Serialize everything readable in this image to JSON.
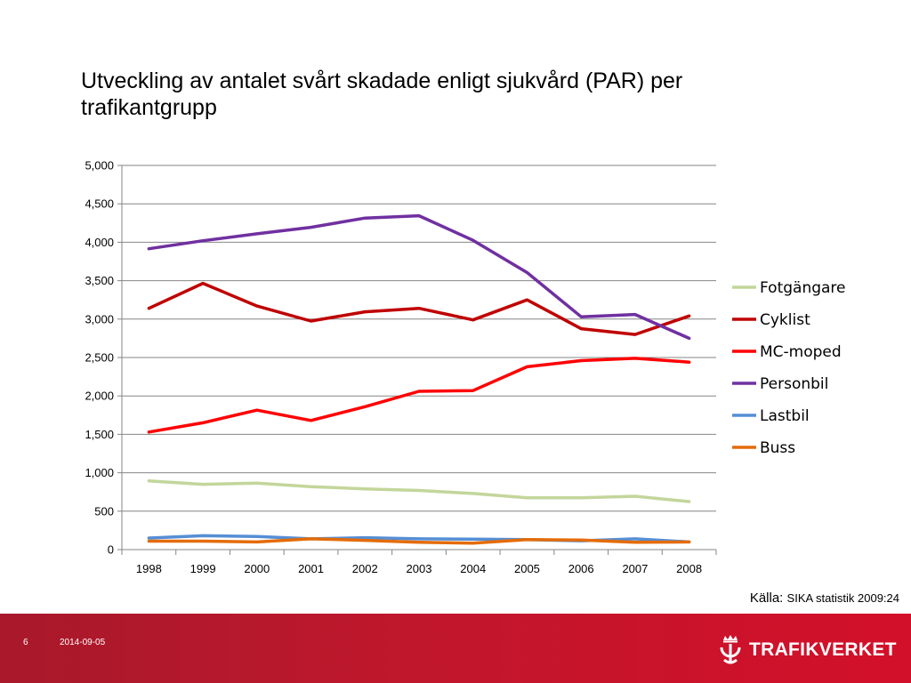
{
  "title": "Utveckling av antalet svårt skadade enligt sjukvård (PAR) per trafikantgrupp",
  "source": {
    "prefix": "Källa:",
    "text": "SIKA statistik 2009:24"
  },
  "footer": {
    "page_number": "6",
    "date": "2014-09-05",
    "logo_text": "TRAFIKVERKET"
  },
  "colors": {
    "footer_band": "#c0172c",
    "logo": "#ffffff"
  },
  "chart_data": {
    "type": "line",
    "title": "",
    "xlabel": "",
    "ylabel": "",
    "grid": true,
    "legend_position": "right",
    "ylim": [
      0,
      5000
    ],
    "yticks": [
      0,
      500,
      1000,
      1500,
      2000,
      2500,
      3000,
      3500,
      4000,
      4500,
      5000
    ],
    "ytick_labels": [
      "0",
      "500",
      "1,000",
      "1,500",
      "2,000",
      "2,500",
      "3,000",
      "3,500",
      "4,000",
      "4,500",
      "5,000"
    ],
    "categories": [
      "1998",
      "1999",
      "2000",
      "2001",
      "2002",
      "2003",
      "2004",
      "2005",
      "2006",
      "2007",
      "2008"
    ],
    "series": [
      {
        "name": "Fotgängare",
        "color": "#c3d69b",
        "values": [
          895,
          850,
          865,
          820,
          790,
          770,
          730,
          675,
          675,
          695,
          625
        ]
      },
      {
        "name": "Cyklist",
        "color": "#c00000",
        "values": [
          3140,
          3465,
          3170,
          2975,
          3095,
          3140,
          2990,
          3250,
          2875,
          2800,
          3040
        ]
      },
      {
        "name": "MC-moped",
        "color": "#ff0000",
        "values": [
          1530,
          1650,
          1815,
          1680,
          1860,
          2060,
          2070,
          2380,
          2460,
          2490,
          2440
        ]
      },
      {
        "name": "Personbil",
        "color": "#7030a0",
        "values": [
          3915,
          4020,
          4110,
          4195,
          4315,
          4345,
          4025,
          3605,
          3030,
          3060,
          2750
        ]
      },
      {
        "name": "Lastbil",
        "color": "#558ed5",
        "values": [
          150,
          180,
          170,
          140,
          155,
          140,
          135,
          130,
          115,
          140,
          100
        ]
      },
      {
        "name": "Buss",
        "color": "#e46c0a",
        "values": [
          110,
          110,
          100,
          140,
          120,
          95,
          85,
          130,
          125,
          95,
          100
        ]
      }
    ]
  }
}
